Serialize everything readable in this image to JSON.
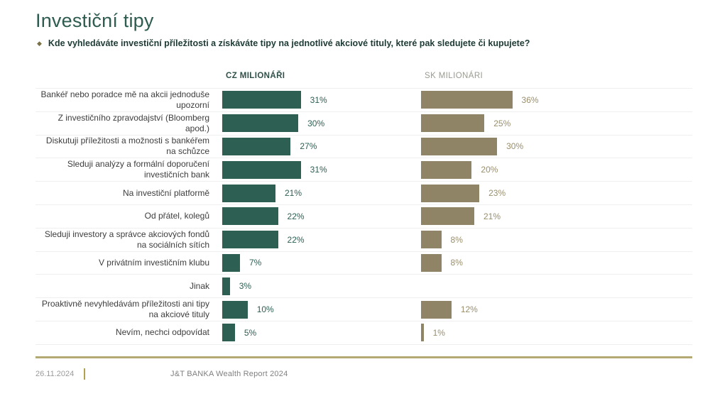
{
  "page": {
    "title": "Investiční tipy",
    "subtitle": "Kde vyhledáváte investiční příležitosti a získáváte tipy na jednotlivé akciové tituly, které pak sledujete či kupujete?"
  },
  "chart_data": {
    "type": "bar",
    "orientation": "horizontal",
    "value_suffix": "%",
    "axis": "none (value labels shown at end of each bar)",
    "grid": "light horizontal row separators",
    "legend": "column headers above each bar group",
    "categories": [
      "Bankéř nebo poradce mě na akcii jednoduše upozorní",
      "Z investičního zpravodajství (Bloomberg apod.)",
      "Diskutuji příležitosti a možnosti s bankéřem na schůzce",
      "Sleduji analýzy a formální doporučení investičních bank",
      "Na investiční platformě",
      "Od přátel, kolegů",
      "Sleduji investory a správce akciových fondů na sociálních sítích",
      "V privátním investičním klubu",
      "Jinak",
      "Proaktivně nevyhledávám příležitosti ani tipy na akciové tituly",
      "Nevím, nechci odpovídat"
    ],
    "series": [
      {
        "name": "CZ MILIONÁŘI",
        "color": "#2d5f53",
        "value_color": "#2d5f53",
        "values": [
          31,
          30,
          27,
          31,
          21,
          22,
          22,
          7,
          3,
          10,
          5
        ]
      },
      {
        "name": "SK MILIONÁRI",
        "color": "#8f8465",
        "value_color": "#998e6c",
        "values": [
          36,
          25,
          30,
          20,
          23,
          21,
          8,
          8,
          null,
          12,
          1
        ]
      }
    ]
  },
  "footer": {
    "date": "26.11.2024",
    "report": "J&T BANKA Wealth Report 2024"
  },
  "colors": {
    "title": "#2e5c50",
    "cz_bar": "#2d5f53",
    "sk_bar": "#8f8465",
    "gold_rule": "#b3a972",
    "subtitle_text": "#1d3a34",
    "bullet": "#7a7145"
  }
}
